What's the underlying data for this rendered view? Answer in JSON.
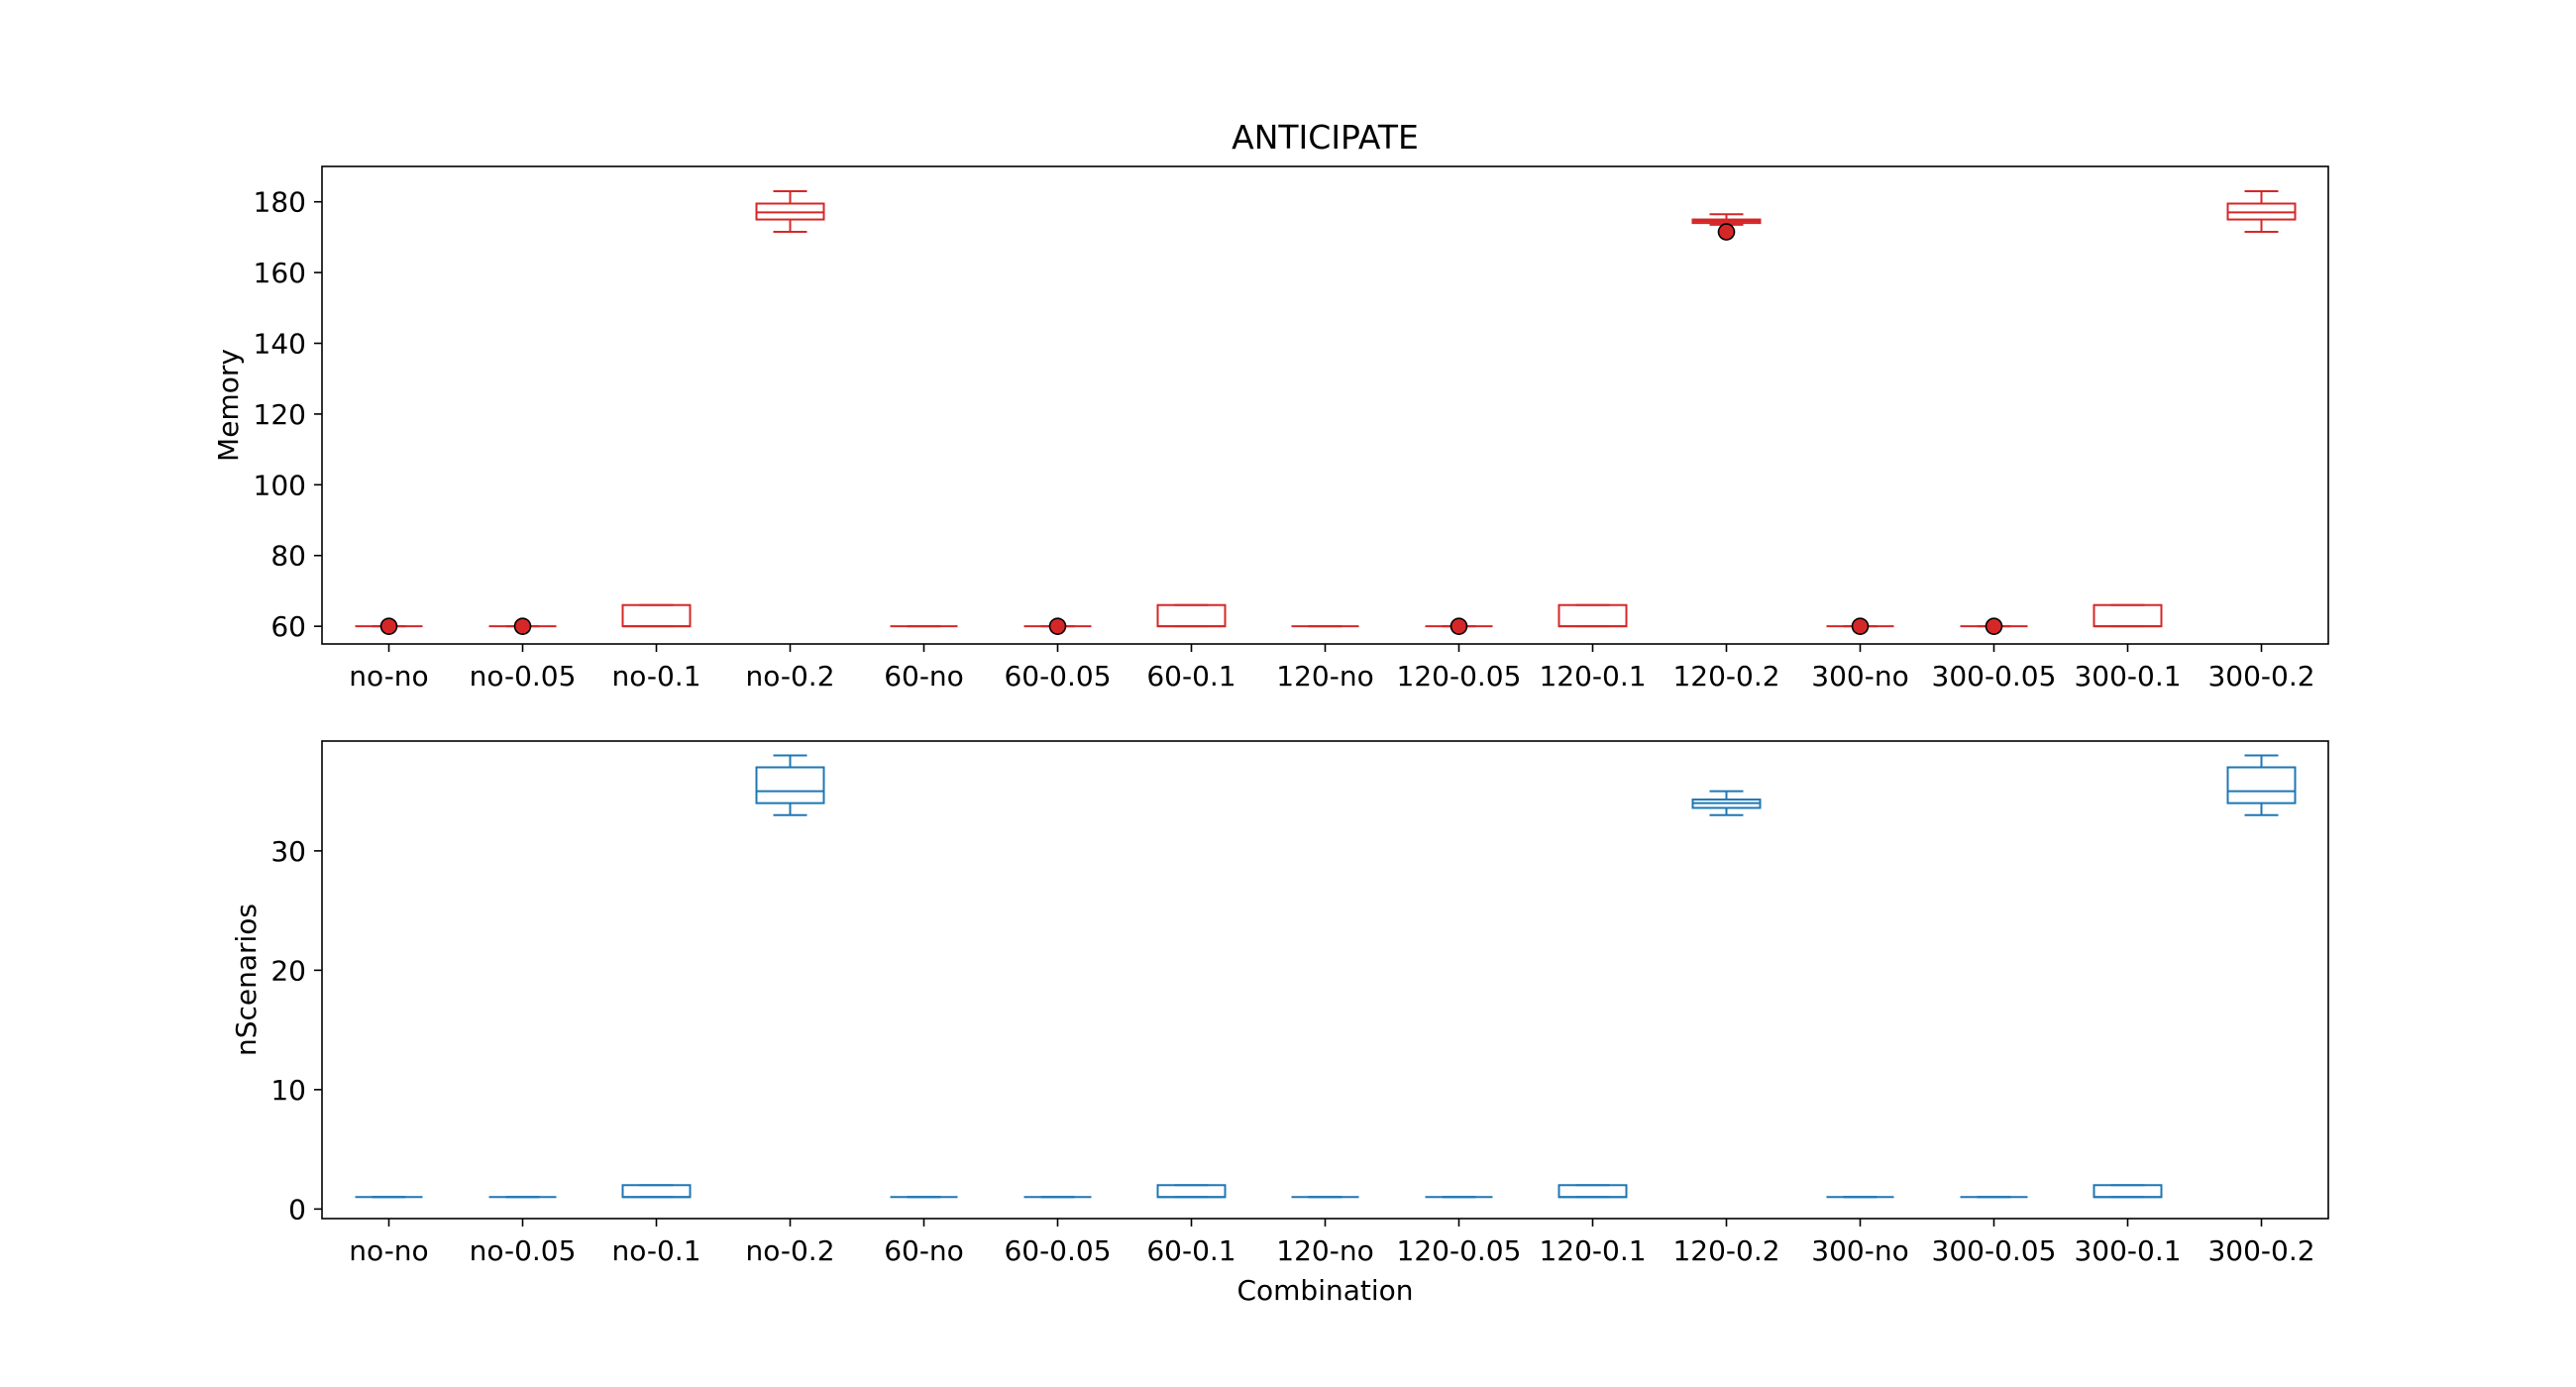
{
  "chart_data": [
    {
      "type": "box",
      "title": "ANTICIPATE",
      "xlabel": "",
      "ylabel": "Memory",
      "ylim": [
        55,
        190
      ],
      "yticks": [
        60,
        80,
        100,
        120,
        140,
        160,
        180
      ],
      "color": "#d62728",
      "grid": false,
      "categories": [
        "no-no",
        "no-0.05",
        "no-0.1",
        "no-0.2",
        "60-no",
        "60-0.05",
        "60-0.1",
        "120-no",
        "120-0.05",
        "120-0.1",
        "120-0.2",
        "300-no",
        "300-0.05",
        "300-0.1",
        "300-0.2"
      ],
      "boxes": [
        {
          "whislo": 60,
          "q1": 60,
          "med": 60,
          "q3": 60,
          "whishi": 60,
          "fliers": [
            60
          ]
        },
        {
          "whislo": 60,
          "q1": 60,
          "med": 60,
          "q3": 60,
          "whishi": 60,
          "fliers": [
            60
          ]
        },
        {
          "whislo": 60,
          "q1": 60,
          "med": 60,
          "q3": 66,
          "whishi": 66,
          "fliers": []
        },
        {
          "whislo": 171.5,
          "q1": 175,
          "med": 177,
          "q3": 179.5,
          "whishi": 183,
          "fliers": []
        },
        {
          "whislo": 60,
          "q1": 60,
          "med": 60,
          "q3": 60,
          "whishi": 60,
          "fliers": []
        },
        {
          "whislo": 60,
          "q1": 60,
          "med": 60,
          "q3": 60,
          "whishi": 60,
          "fliers": [
            60
          ]
        },
        {
          "whislo": 60,
          "q1": 60,
          "med": 60,
          "q3": 66,
          "whishi": 66,
          "fliers": []
        },
        {
          "whislo": 60,
          "q1": 60,
          "med": 60,
          "q3": 60,
          "whishi": 60,
          "fliers": []
        },
        {
          "whislo": 60,
          "q1": 60,
          "med": 60,
          "q3": 60,
          "whishi": 60,
          "fliers": [
            60
          ]
        },
        {
          "whislo": 60,
          "q1": 60,
          "med": 60,
          "q3": 66,
          "whishi": 66,
          "fliers": []
        },
        {
          "whislo": 173.5,
          "q1": 174,
          "med": 174.5,
          "q3": 175,
          "whishi": 176.5,
          "fliers": [
            171.5
          ]
        },
        {
          "whislo": 60,
          "q1": 60,
          "med": 60,
          "q3": 60,
          "whishi": 60,
          "fliers": [
            60
          ]
        },
        {
          "whislo": 60,
          "q1": 60,
          "med": 60,
          "q3": 60,
          "whishi": 60,
          "fliers": [
            60
          ]
        },
        {
          "whislo": 60,
          "q1": 60,
          "med": 60,
          "q3": 66,
          "whishi": 66,
          "fliers": []
        },
        {
          "whislo": 171.5,
          "q1": 175,
          "med": 177,
          "q3": 179.5,
          "whishi": 183,
          "fliers": []
        }
      ]
    },
    {
      "type": "box",
      "title": "",
      "xlabel": "Combination",
      "ylabel": "nScenarios",
      "ylim": [
        -0.8,
        39.2
      ],
      "yticks": [
        0,
        10,
        20,
        30
      ],
      "color": "#1f77b4",
      "grid": false,
      "categories": [
        "no-no",
        "no-0.05",
        "no-0.1",
        "no-0.2",
        "60-no",
        "60-0.05",
        "60-0.1",
        "120-no",
        "120-0.05",
        "120-0.1",
        "120-0.2",
        "300-no",
        "300-0.05",
        "300-0.1",
        "300-0.2"
      ],
      "boxes": [
        {
          "whislo": 1,
          "q1": 1,
          "med": 1,
          "q3": 1,
          "whishi": 1,
          "fliers": []
        },
        {
          "whislo": 1,
          "q1": 1,
          "med": 1,
          "q3": 1,
          "whishi": 1,
          "fliers": []
        },
        {
          "whislo": 1,
          "q1": 1,
          "med": 1,
          "q3": 2,
          "whishi": 2,
          "fliers": []
        },
        {
          "whislo": 33,
          "q1": 34,
          "med": 35,
          "q3": 37,
          "whishi": 38,
          "fliers": []
        },
        {
          "whislo": 1,
          "q1": 1,
          "med": 1,
          "q3": 1,
          "whishi": 1,
          "fliers": []
        },
        {
          "whislo": 1,
          "q1": 1,
          "med": 1,
          "q3": 1,
          "whishi": 1,
          "fliers": []
        },
        {
          "whislo": 1,
          "q1": 1,
          "med": 1,
          "q3": 2,
          "whishi": 2,
          "fliers": []
        },
        {
          "whislo": 1,
          "q1": 1,
          "med": 1,
          "q3": 1,
          "whishi": 1,
          "fliers": []
        },
        {
          "whislo": 1,
          "q1": 1,
          "med": 1,
          "q3": 1,
          "whishi": 1,
          "fliers": []
        },
        {
          "whislo": 1,
          "q1": 1,
          "med": 1,
          "q3": 2,
          "whishi": 2,
          "fliers": []
        },
        {
          "whislo": 33,
          "q1": 33.6,
          "med": 34,
          "q3": 34.3,
          "whishi": 35,
          "fliers": []
        },
        {
          "whislo": 1,
          "q1": 1,
          "med": 1,
          "q3": 1,
          "whishi": 1,
          "fliers": []
        },
        {
          "whislo": 1,
          "q1": 1,
          "med": 1,
          "q3": 1,
          "whishi": 1,
          "fliers": []
        },
        {
          "whislo": 1,
          "q1": 1,
          "med": 1,
          "q3": 2,
          "whishi": 2,
          "fliers": []
        },
        {
          "whislo": 33,
          "q1": 34,
          "med": 35,
          "q3": 37,
          "whishi": 38,
          "fliers": []
        }
      ]
    }
  ]
}
